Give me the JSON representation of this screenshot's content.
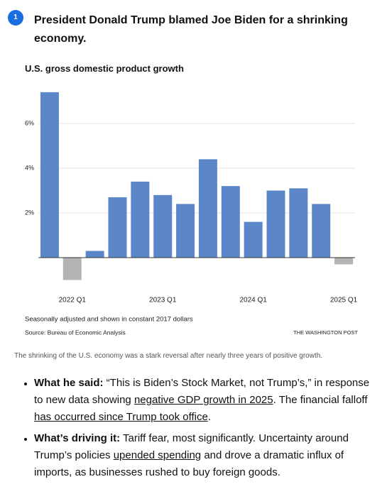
{
  "badge": "1",
  "headline": "President Donald Trump blamed Joe Biden for a shrinking economy.",
  "chart_data": {
    "type": "bar",
    "title": "U.S. gross domestic product growth",
    "categories": [
      null,
      "2022 Q1",
      null,
      null,
      null,
      "2023 Q1",
      null,
      null,
      null,
      "2024 Q1",
      null,
      null,
      null,
      "2025 Q1"
    ],
    "values": [
      7.4,
      -1.0,
      0.3,
      2.7,
      3.4,
      2.8,
      2.4,
      4.4,
      3.2,
      1.6,
      3.0,
      3.1,
      2.4,
      -0.3
    ],
    "color": "#5b87c9",
    "negative_color": "#b3b3b3",
    "ylim": [
      -1.2,
      7.8
    ],
    "yticks": [
      {
        "value": 2,
        "label": "2%"
      },
      {
        "value": 4,
        "label": "4%"
      },
      {
        "value": 6,
        "label": "6%"
      }
    ],
    "grid": true,
    "note": "Seasonally adjusted and shown in constant 2017 dollars",
    "source": "Source: Bureau of Economic Analysis",
    "credit": "THE WASHINGTON POST"
  },
  "caption": "The shrinking of the U.S. economy was a stark reversal after nearly three years of positive growth.",
  "bullets": [
    {
      "label": "What he said:",
      "parts": [
        {
          "text": " “This is Biden’s Stock Market, not Trump’s,” in response to new data showing "
        },
        {
          "text": "negative GDP growth in 2025",
          "link": true
        },
        {
          "text": ". The financial falloff "
        },
        {
          "text": "has occurred since Trump took office",
          "link": true
        },
        {
          "text": "."
        }
      ]
    },
    {
      "label": "What’s driving it:",
      "parts": [
        {
          "text": " Tariff fear, most significantly. Uncertainty around Trump’s policies "
        },
        {
          "text": "upended spending",
          "link": true
        },
        {
          "text": " and drove a dramatic influx of imports, as businesses rushed to buy foreign goods."
        }
      ]
    }
  ]
}
